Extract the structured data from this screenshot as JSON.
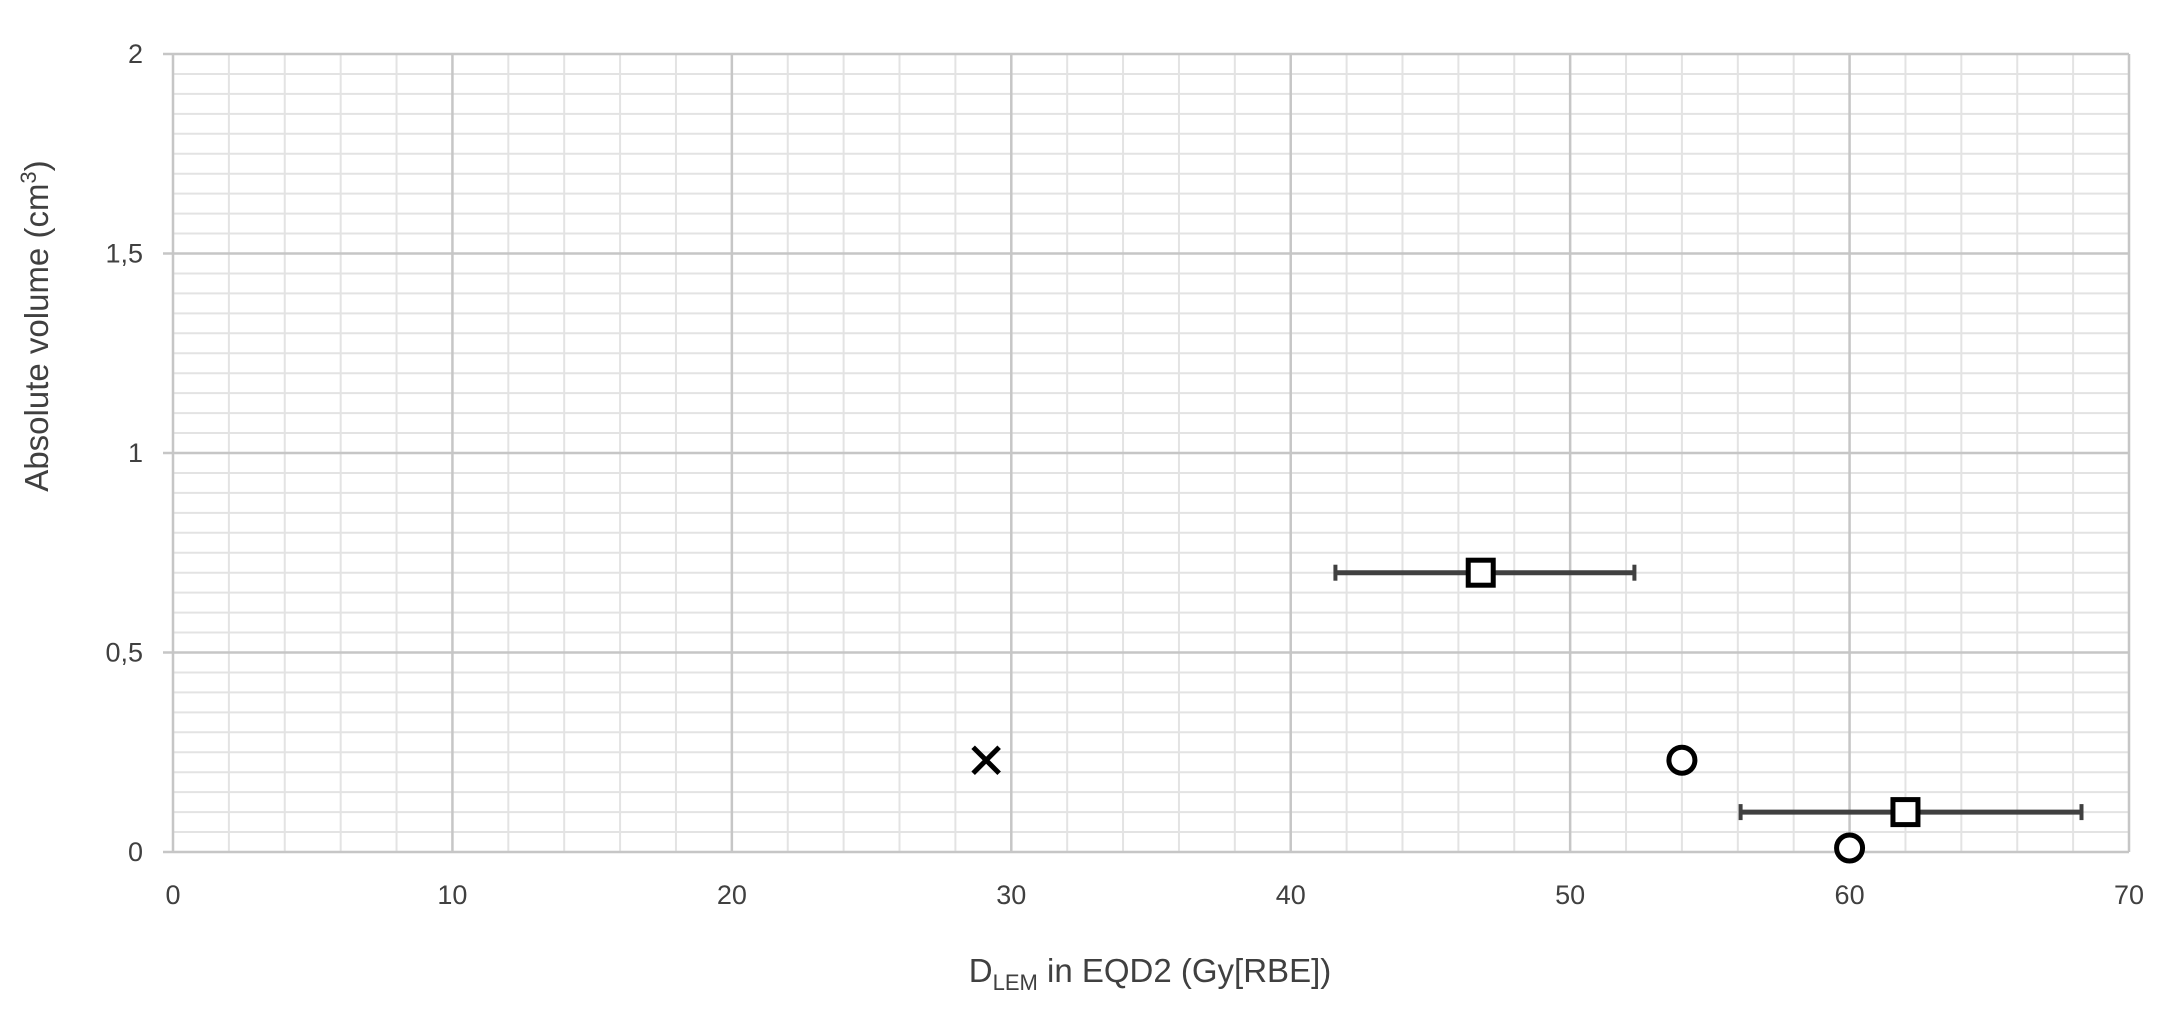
{
  "chart_data": {
    "type": "scatter",
    "x_axis": {
      "label_main": "D",
      "label_sub": "LEM",
      "label_rest": " in EQD2 (Gy[RBE])",
      "range": [
        0,
        70
      ],
      "ticks": [
        0,
        10,
        20,
        30,
        40,
        50,
        60,
        70
      ],
      "tick_labels": [
        "0",
        "10",
        "20",
        "30",
        "40",
        "50",
        "60",
        "70"
      ],
      "minor_step": 2
    },
    "y_axis": {
      "label_main": "Absolute volume (cm",
      "label_sup": "3",
      "label_end": ")",
      "range": [
        0,
        2
      ],
      "ticks": [
        0,
        0.5,
        1,
        1.5,
        2
      ],
      "tick_labels": [
        "0",
        "0,5",
        "1",
        "1,5",
        "2"
      ],
      "minor_step": 0.05
    },
    "grid": {
      "major": true,
      "minor": true
    },
    "series": [
      {
        "marker": "square",
        "points": [
          {
            "x": 46.8,
            "y": 0.7,
            "xerr_low": 41.6,
            "xerr_high": 52.3
          },
          {
            "x": 62,
            "y": 0.1,
            "xerr_low": 56.1,
            "xerr_high": 68.3
          }
        ]
      },
      {
        "marker": "circle",
        "points": [
          {
            "x": 54,
            "y": 0.23
          },
          {
            "x": 60,
            "y": 0.01
          }
        ]
      },
      {
        "marker": "x",
        "points": [
          {
            "x": 29.1,
            "y": 0.23
          }
        ]
      }
    ],
    "colors": {
      "marker": "#000000",
      "errorbar": "#404040",
      "grid_major": "#c6c6c6",
      "grid_minor": "#e3e3e3",
      "text": "#404040"
    }
  }
}
